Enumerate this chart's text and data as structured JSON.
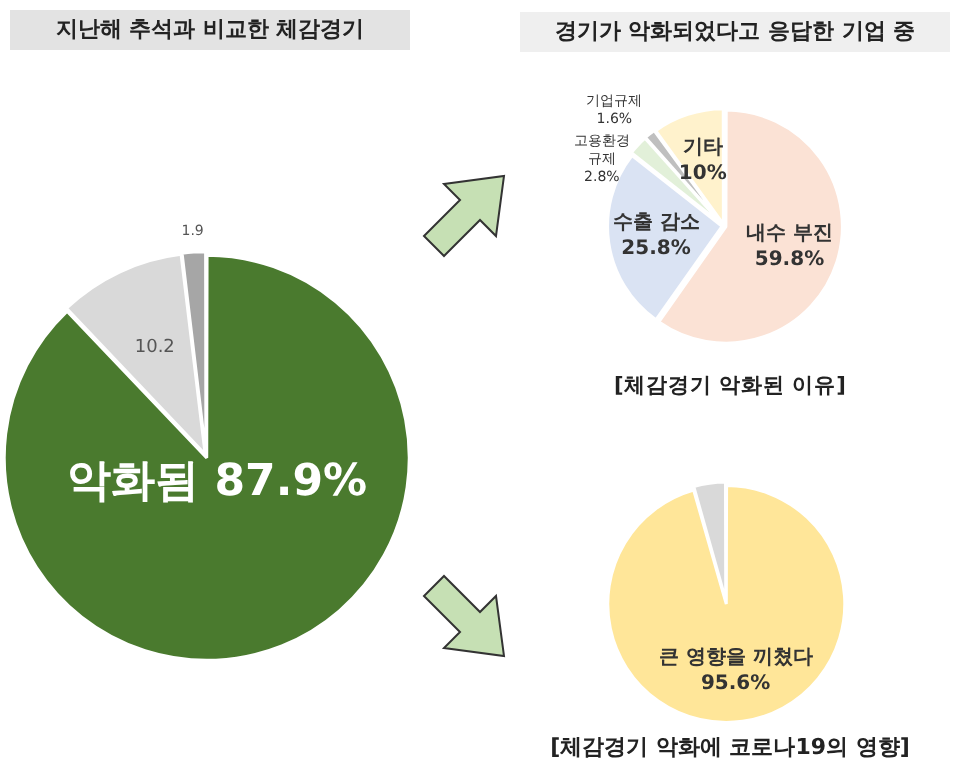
{
  "chart_data": [
    {
      "type": "pie",
      "title": "지난해 추석과 비교한 체감경기",
      "categories": [
        "악화됨",
        null,
        null
      ],
      "values": [
        87.9,
        10.2,
        1.9
      ],
      "colors": [
        "#4a7a2e",
        "#d9d9d9",
        "#a6a6a6"
      ],
      "value_labels": [
        "87.9%",
        "10.2",
        "1.9"
      ],
      "legend": false
    },
    {
      "type": "pie",
      "title": "경기가 악화되었다고 응답한 기업 중",
      "categories": [
        "내수 부진",
        "수출 감소",
        "고용환경 규제",
        "기업규제",
        "기타"
      ],
      "values": [
        59.8,
        25.8,
        2.8,
        1.6,
        10
      ],
      "colors": [
        "#fbe2d5",
        "#dae3f3",
        "#e2f0d9",
        "#bfbfbf",
        "#fff2cc"
      ],
      "value_labels": [
        "59.8%",
        "25.8%",
        "2.8%",
        "1.6%",
        "10%"
      ],
      "annotations": [
        "[체감경기 악화된 이유]"
      ],
      "legend": false
    },
    {
      "type": "pie",
      "title": "[체감경기 악화에 코로나19의 영향]",
      "categories": [
        "큰 영향을 끼쳤다",
        null
      ],
      "values": [
        95.6,
        4.4
      ],
      "colors": [
        "#ffe699",
        "#d9d9d9"
      ],
      "value_labels": [
        "95.6%",
        null
      ],
      "legend": false
    }
  ]
}
